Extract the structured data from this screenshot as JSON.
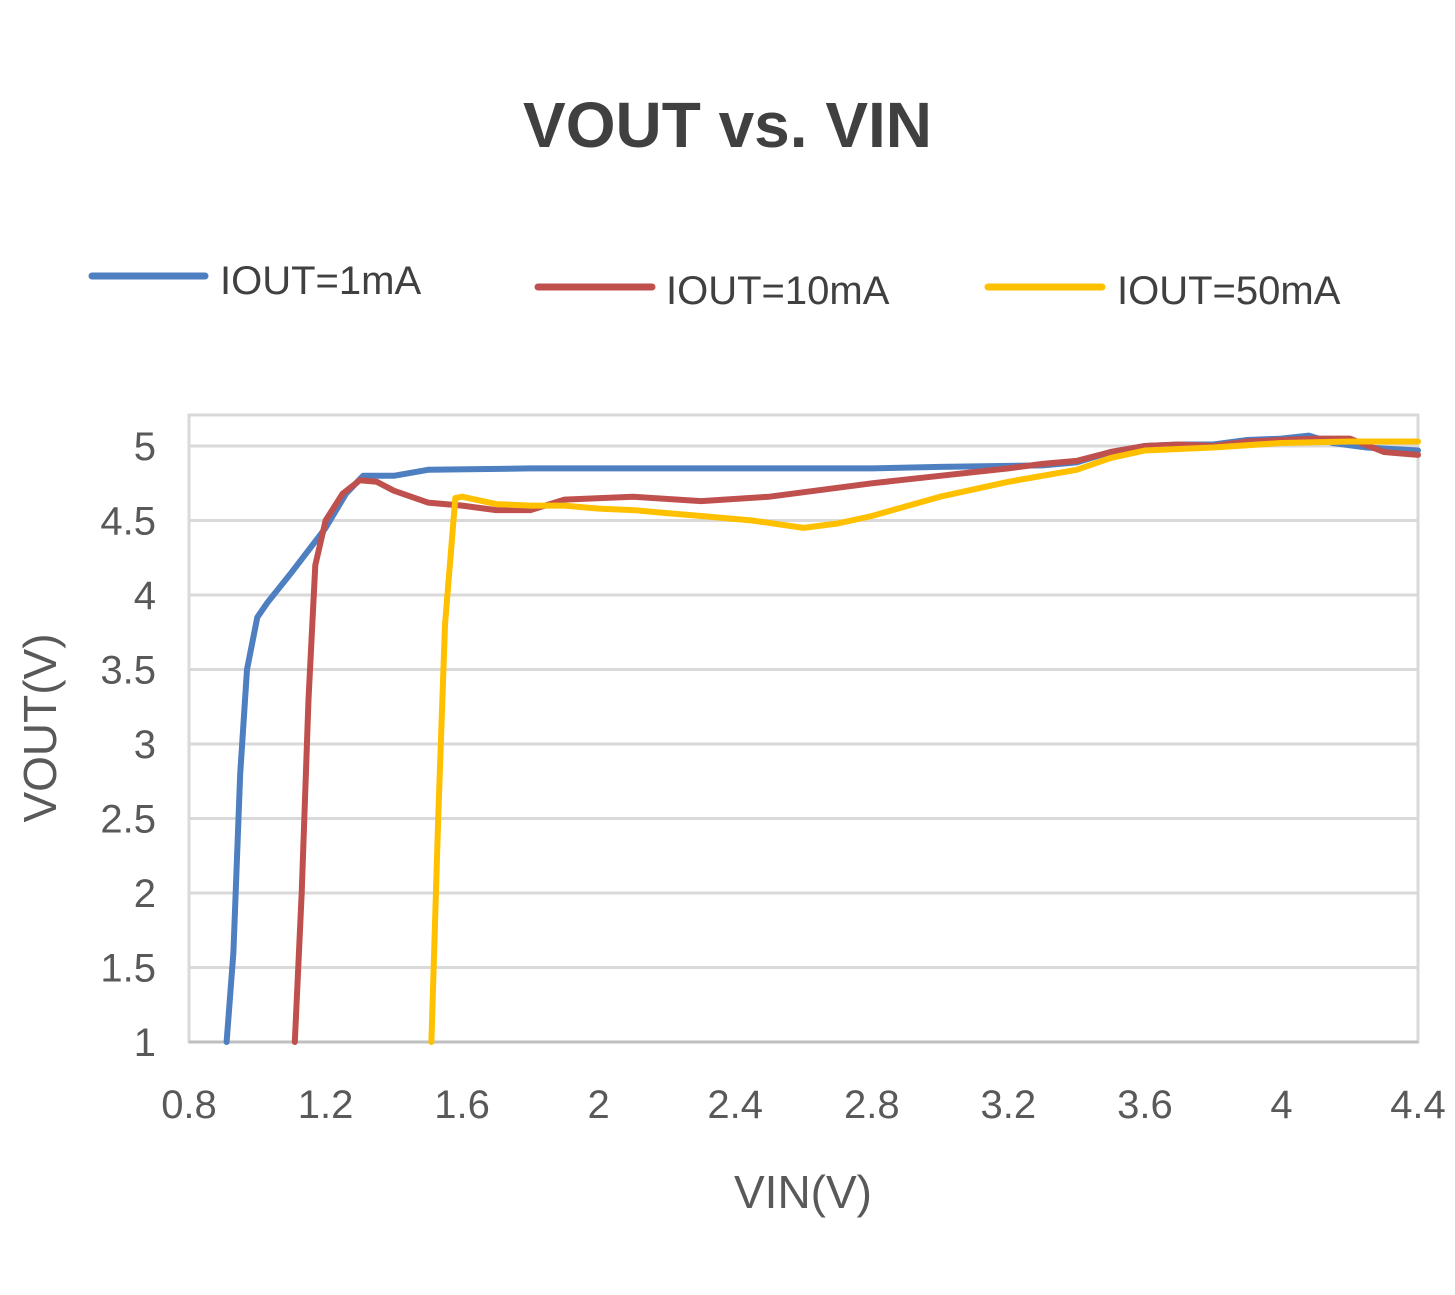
{
  "chart_data": {
    "type": "line",
    "title": "VOUT vs. VIN",
    "xlabel": "VIN(V)",
    "ylabel": "VOUT(V)",
    "xlim": [
      0.8,
      4.4
    ],
    "ylim": [
      1,
      5.2
    ],
    "x_ticks": [
      "0.8",
      "1.2",
      "1.6",
      "2",
      "2.4",
      "2.8",
      "3.2",
      "3.6",
      "4",
      "4.4"
    ],
    "y_ticks": [
      "1",
      "1.5",
      "2",
      "2.5",
      "3",
      "3.5",
      "4",
      "4.5",
      "5"
    ],
    "grid": true,
    "legend_position": "top",
    "series": [
      {
        "name": "IOUT=1mA",
        "color": "#4E7FC0",
        "points": [
          [
            0.91,
            1.0
          ],
          [
            0.93,
            1.6
          ],
          [
            0.95,
            2.8
          ],
          [
            0.97,
            3.5
          ],
          [
            1.0,
            3.85
          ],
          [
            1.03,
            3.95
          ],
          [
            1.1,
            4.15
          ],
          [
            1.2,
            4.45
          ],
          [
            1.26,
            4.68
          ],
          [
            1.31,
            4.8
          ],
          [
            1.36,
            4.8
          ],
          [
            1.4,
            4.8
          ],
          [
            1.5,
            4.84
          ],
          [
            1.8,
            4.85
          ],
          [
            2.4,
            4.85
          ],
          [
            2.8,
            4.85
          ],
          [
            3.0,
            4.86
          ],
          [
            3.3,
            4.87
          ],
          [
            3.4,
            4.89
          ],
          [
            3.5,
            4.96
          ],
          [
            3.6,
            5.0
          ],
          [
            3.7,
            5.01
          ],
          [
            3.8,
            5.01
          ],
          [
            3.9,
            5.04
          ],
          [
            4.0,
            5.05
          ],
          [
            4.08,
            5.07
          ],
          [
            4.15,
            5.02
          ],
          [
            4.25,
            4.99
          ],
          [
            4.4,
            4.97
          ]
        ]
      },
      {
        "name": "IOUT=10mA",
        "color": "#C0504D",
        "points": [
          [
            1.11,
            1.0
          ],
          [
            1.13,
            2.0
          ],
          [
            1.15,
            3.3
          ],
          [
            1.17,
            4.2
          ],
          [
            1.2,
            4.5
          ],
          [
            1.25,
            4.68
          ],
          [
            1.3,
            4.77
          ],
          [
            1.35,
            4.76
          ],
          [
            1.4,
            4.7
          ],
          [
            1.5,
            4.62
          ],
          [
            1.6,
            4.6
          ],
          [
            1.7,
            4.57
          ],
          [
            1.8,
            4.57
          ],
          [
            1.9,
            4.64
          ],
          [
            2.1,
            4.66
          ],
          [
            2.3,
            4.63
          ],
          [
            2.5,
            4.66
          ],
          [
            2.8,
            4.75
          ],
          [
            3.0,
            4.8
          ],
          [
            3.2,
            4.85
          ],
          [
            3.3,
            4.88
          ],
          [
            3.4,
            4.9
          ],
          [
            3.5,
            4.96
          ],
          [
            3.6,
            5.0
          ],
          [
            3.7,
            5.01
          ],
          [
            3.8,
            5.0
          ],
          [
            3.9,
            5.03
          ],
          [
            4.0,
            5.04
          ],
          [
            4.1,
            5.05
          ],
          [
            4.2,
            5.05
          ],
          [
            4.3,
            4.96
          ],
          [
            4.4,
            4.94
          ]
        ]
      },
      {
        "name": "IOUT=50mA",
        "color": "#FFC000",
        "points": [
          [
            1.51,
            1.0
          ],
          [
            1.53,
            2.5
          ],
          [
            1.55,
            3.8
          ],
          [
            1.58,
            4.65
          ],
          [
            1.6,
            4.66
          ],
          [
            1.7,
            4.61
          ],
          [
            1.8,
            4.6
          ],
          [
            1.9,
            4.6
          ],
          [
            2.0,
            4.58
          ],
          [
            2.1,
            4.57
          ],
          [
            2.2,
            4.55
          ],
          [
            2.3,
            4.53
          ],
          [
            2.45,
            4.5
          ],
          [
            2.6,
            4.45
          ],
          [
            2.7,
            4.48
          ],
          [
            2.8,
            4.53
          ],
          [
            3.0,
            4.66
          ],
          [
            3.2,
            4.76
          ],
          [
            3.4,
            4.84
          ],
          [
            3.5,
            4.92
          ],
          [
            3.6,
            4.97
          ],
          [
            3.8,
            4.99
          ],
          [
            4.0,
            5.02
          ],
          [
            4.2,
            5.03
          ],
          [
            4.4,
            5.03
          ]
        ]
      }
    ]
  }
}
